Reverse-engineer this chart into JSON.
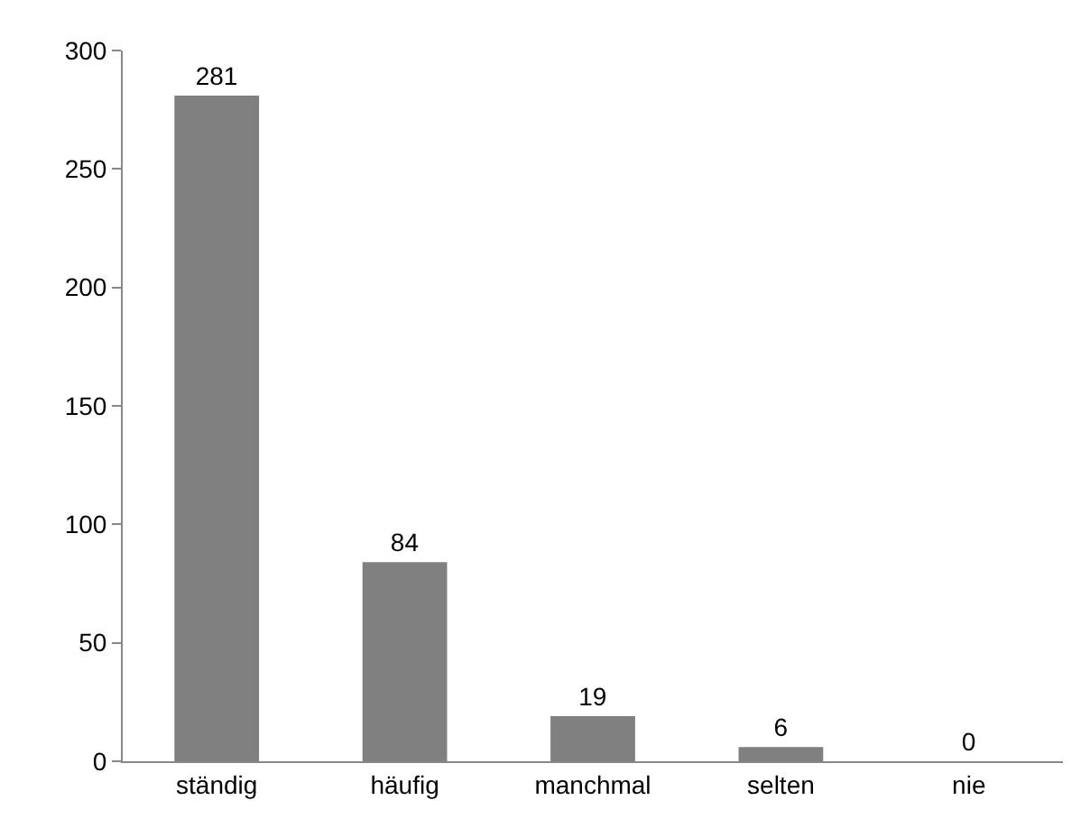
{
  "chart_data": {
    "type": "bar",
    "categories": [
      "ständig",
      "häufig",
      "manchmal",
      "selten",
      "nie"
    ],
    "values": [
      281,
      84,
      19,
      6,
      0
    ],
    "color": "#808080",
    "ylim": [
      0,
      300
    ],
    "yticks": [
      0,
      50,
      100,
      150,
      200,
      250,
      300
    ],
    "data_labels": true,
    "grid": false,
    "legend": false
  }
}
